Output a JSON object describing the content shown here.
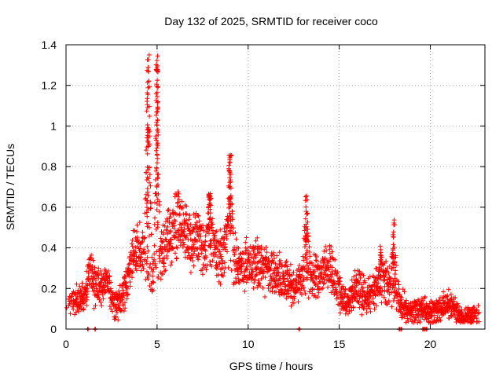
{
  "chart_data": {
    "type": "scatter",
    "title": "Day 132 of 2025, SRMTID for receiver coco",
    "xlabel": "GPS time / hours",
    "ylabel": "SRMTID / TECUs",
    "xlim": [
      0,
      23
    ],
    "ylim": [
      0,
      1.4
    ],
    "xticks": [
      0,
      5,
      10,
      15,
      20
    ],
    "xtick_labels": [
      "0",
      "5",
      "10",
      "15",
      "20"
    ],
    "yticks": [
      0,
      0.2,
      0.4,
      0.6,
      0.8,
      1.0,
      1.2,
      1.4
    ],
    "ytick_labels": [
      "0",
      "0.2",
      "0.4",
      "0.6",
      "0.8",
      "1",
      "1.2",
      "1.4"
    ],
    "grid": true,
    "marker": "plus",
    "marker_color": "#ff0000",
    "profile": {
      "description_hint": "approximate envelope of per-station SRMTID values vs time (hours, TECU)",
      "points": [
        [
          0.0,
          0.14
        ],
        [
          0.5,
          0.13
        ],
        [
          1.0,
          0.16
        ],
        [
          1.3,
          0.3
        ],
        [
          1.6,
          0.2
        ],
        [
          2.0,
          0.2
        ],
        [
          2.3,
          0.24
        ],
        [
          2.6,
          0.15
        ],
        [
          3.0,
          0.15
        ],
        [
          3.4,
          0.25
        ],
        [
          3.8,
          0.38
        ],
        [
          4.2,
          0.35
        ],
        [
          4.6,
          0.22
        ],
        [
          5.0,
          0.3
        ],
        [
          5.3,
          0.38
        ],
        [
          5.8,
          0.45
        ],
        [
          6.2,
          0.52
        ],
        [
          6.6,
          0.45
        ],
        [
          7.0,
          0.42
        ],
        [
          7.5,
          0.4
        ],
        [
          8.0,
          0.38
        ],
        [
          8.5,
          0.32
        ],
        [
          9.0,
          0.45
        ],
        [
          9.4,
          0.28
        ],
        [
          10.0,
          0.28
        ],
        [
          10.5,
          0.3
        ],
        [
          11.0,
          0.28
        ],
        [
          11.5,
          0.26
        ],
        [
          12.0,
          0.24
        ],
        [
          12.5,
          0.18
        ],
        [
          13.0,
          0.25
        ],
        [
          13.5,
          0.24
        ],
        [
          14.0,
          0.26
        ],
        [
          14.5,
          0.28
        ],
        [
          15.0,
          0.2
        ],
        [
          15.5,
          0.15
        ],
        [
          16.0,
          0.2
        ],
        [
          16.5,
          0.15
        ],
        [
          17.0,
          0.2
        ],
        [
          17.5,
          0.24
        ],
        [
          18.0,
          0.2
        ],
        [
          18.5,
          0.1
        ],
        [
          19.0,
          0.08
        ],
        [
          19.5,
          0.08
        ],
        [
          20.0,
          0.06
        ],
        [
          20.5,
          0.07
        ],
        [
          21.0,
          0.09
        ],
        [
          21.5,
          0.07
        ],
        [
          22.0,
          0.06
        ],
        [
          22.8,
          0.06
        ]
      ],
      "peaks": [
        {
          "x": 4.5,
          "max": 1.36,
          "width": 0.25
        },
        {
          "x": 5.0,
          "max": 1.36,
          "width": 0.18
        },
        {
          "x": 9.0,
          "max": 0.86,
          "width": 0.25
        },
        {
          "x": 13.2,
          "max": 0.68,
          "width": 0.25
        },
        {
          "x": 17.3,
          "max": 0.42,
          "width": 0.2
        },
        {
          "x": 18.0,
          "max": 0.55,
          "width": 0.2
        },
        {
          "x": 7.9,
          "max": 0.68,
          "width": 0.3
        }
      ],
      "zeros": [
        1.2,
        1.6,
        12.8,
        18.3,
        18.4,
        19.6,
        19.7,
        19.8
      ]
    }
  }
}
